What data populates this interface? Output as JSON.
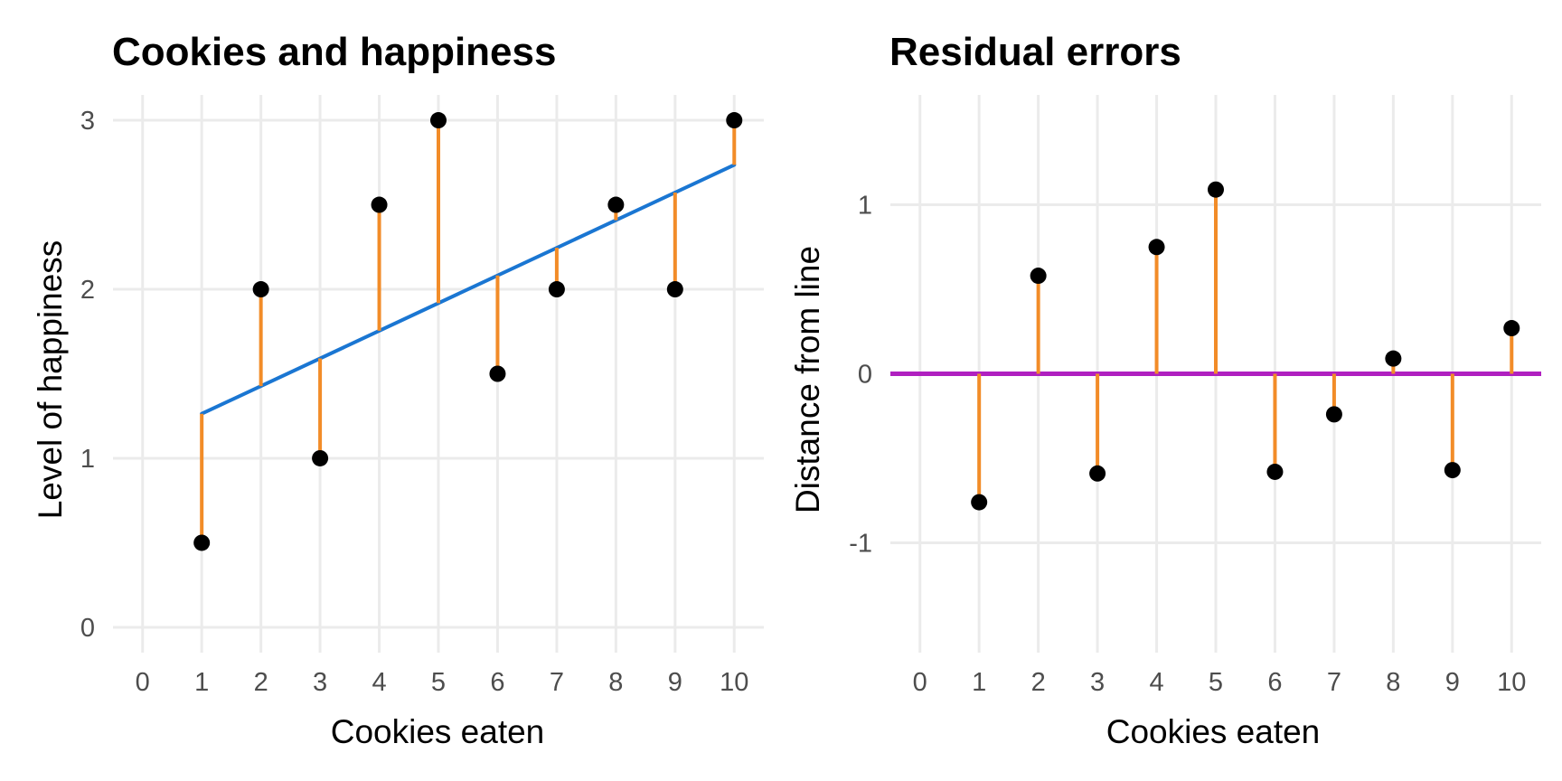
{
  "chart_data": [
    {
      "type": "scatter",
      "title": "Cookies and happiness",
      "xlabel": "Cookies eaten",
      "ylabel": "Level of happiness",
      "xlim": [
        -0.5,
        10.5
      ],
      "ylim": [
        -0.15,
        3.15
      ],
      "x_ticks": [
        0,
        1,
        2,
        3,
        4,
        5,
        6,
        7,
        8,
        9,
        10
      ],
      "y_ticks": [
        0,
        1,
        2,
        3
      ],
      "grid": true,
      "x": [
        1,
        2,
        3,
        4,
        5,
        6,
        7,
        8,
        9,
        10
      ],
      "y": [
        0.5,
        2,
        1,
        2.5,
        3,
        1.5,
        2,
        2.5,
        2,
        3
      ],
      "fit_line": {
        "slope": 0.1636,
        "intercept": 1.1,
        "color": "#1a76d2"
      },
      "point_color": "#000000",
      "residual_color": "#f28c28"
    },
    {
      "type": "scatter",
      "title": "Residual errors",
      "xlabel": "Cookies eaten",
      "ylabel": "Distance from line",
      "xlim": [
        -0.5,
        10.5
      ],
      "ylim": [
        -1.65,
        1.65
      ],
      "x_ticks": [
        0,
        1,
        2,
        3,
        4,
        5,
        6,
        7,
        8,
        9,
        10
      ],
      "y_ticks": [
        -1,
        0,
        1
      ],
      "grid": true,
      "x": [
        1,
        2,
        3,
        4,
        5,
        6,
        7,
        8,
        9,
        10
      ],
      "y": [
        -0.76,
        0.58,
        -0.59,
        0.75,
        1.09,
        -0.58,
        -0.24,
        0.09,
        -0.57,
        0.27
      ],
      "zero_line_color": "#b020c0",
      "point_color": "#000000",
      "residual_color": "#f28c28"
    }
  ]
}
